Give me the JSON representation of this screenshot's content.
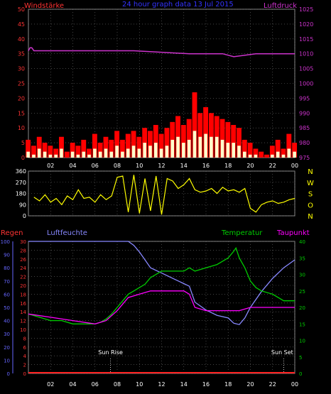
{
  "colors": {
    "background": "#000000",
    "frame": "#8a8a8a",
    "grid": "#6e6e6e",
    "wind_avg": "#ffffcc",
    "wind_gust": "#ff0000",
    "pressure": "#cc33cc",
    "direction": "#ffff00",
    "humidity": "#8888ff",
    "temperature": "#00cc00",
    "dewpoint": "#ff00ff",
    "rain": "#ff2222",
    "axis_left_red": "#ff3333",
    "axis_right_magenta": "#cc33cc",
    "axis_humidity": "#6666ff",
    "axis_right_green": "#00cc00",
    "title": "#3333ff",
    "text_white": "#ffffff"
  },
  "chart_data": [
    {
      "type": "line",
      "title": "24 hour graph data  13 Jul 2015",
      "left_label": "Windstärke",
      "right_label": "Luftdruck",
      "x_ticks": [
        "02",
        "04",
        "06",
        "08",
        "10",
        "12",
        "14",
        "16",
        "18",
        "20",
        "22",
        "00"
      ],
      "y_left_ticks": [
        "0",
        "5",
        "10",
        "15",
        "20",
        "25",
        "30",
        "35",
        "40",
        "45",
        "50"
      ],
      "y_right_ticks": [
        "975",
        "980",
        "985",
        "990",
        "995",
        "1000",
        "1005",
        "1010",
        "1015",
        "1020",
        "1025"
      ],
      "ylim_left": [
        0,
        50
      ],
      "ylim_right": [
        975,
        1025
      ],
      "xlim_hours": [
        0,
        24
      ],
      "grid": true,
      "series": [
        {
          "name": "Luftdruck",
          "axis": "right",
          "x": [
            0,
            0.15,
            0.3,
            0.5,
            5,
            6,
            6.5,
            9.5,
            14.5,
            17.5,
            18.5,
            20.5,
            24
          ],
          "values": [
            1011,
            1012,
            1012,
            1011,
            1011,
            1011,
            1011,
            1011,
            1010,
            1010,
            1009,
            1010,
            1010
          ]
        },
        {
          "name": "wind_gust",
          "axis": "left",
          "x": [
            0,
            0.5,
            1,
            1.5,
            2,
            2.5,
            3,
            3.5,
            4,
            4.5,
            5,
            5.5,
            6,
            6.5,
            7,
            7.5,
            8,
            8.5,
            9,
            9.5,
            10,
            10.5,
            11,
            11.5,
            12,
            12.5,
            13,
            13.5,
            14,
            14.5,
            15,
            15.5,
            16,
            16.5,
            17,
            17.5,
            18,
            18.5,
            19,
            19.5,
            20,
            20.5,
            21,
            21.5,
            22,
            22.5,
            23,
            23.5,
            24
          ],
          "values": [
            6,
            4,
            7,
            5,
            4,
            3,
            7,
            2,
            5,
            4,
            6,
            3,
            8,
            5,
            7,
            6,
            9,
            6,
            8,
            9,
            7,
            10,
            9,
            11,
            8,
            10,
            12,
            14,
            11,
            13,
            22,
            15,
            17,
            15,
            14,
            13,
            12,
            11,
            10,
            6,
            5,
            3,
            2,
            1,
            4,
            6,
            3,
            8,
            5
          ]
        },
        {
          "name": "wind_avg",
          "axis": "left",
          "x": [
            0,
            0.5,
            1,
            1.5,
            2,
            2.5,
            3,
            3.5,
            4,
            4.5,
            5,
            5.5,
            6,
            6.5,
            7,
            7.5,
            8,
            8.5,
            9,
            9.5,
            10,
            10.5,
            11,
            11.5,
            12,
            12.5,
            13,
            13.5,
            14,
            14.5,
            15,
            15.5,
            16,
            16.5,
            17,
            17.5,
            18,
            18.5,
            19,
            19.5,
            20,
            20.5,
            21,
            21.5,
            22,
            22.5,
            23,
            23.5,
            24
          ],
          "values": [
            2,
            1,
            3,
            2,
            1,
            1,
            3,
            0,
            2,
            1,
            2,
            1,
            3,
            2,
            3,
            2,
            4,
            2,
            3,
            4,
            3,
            5,
            4,
            5,
            3,
            4,
            6,
            7,
            5,
            6,
            9,
            7,
            8,
            7,
            7,
            6,
            5,
            5,
            4,
            2,
            1,
            1,
            0,
            0,
            1,
            2,
            1,
            3,
            2
          ]
        }
      ]
    },
    {
      "type": "line",
      "right_label": [
        "N",
        "W",
        "S",
        "O",
        "N"
      ],
      "y_left_ticks": [
        "0",
        "90",
        "180",
        "270",
        "360"
      ],
      "ylim_left": [
        0,
        360
      ],
      "xlim_hours": [
        0,
        24
      ],
      "grid": true,
      "series": [
        {
          "name": "wind_direction",
          "axis": "left",
          "x": [
            0.5,
            1,
            1.5,
            2,
            2.5,
            3,
            3.5,
            4,
            4.5,
            5,
            5.5,
            6,
            6.5,
            7,
            7.5,
            8,
            8.5,
            9,
            9.5,
            10,
            10.5,
            11,
            11.5,
            12,
            12.5,
            13,
            13.5,
            14,
            14.5,
            15,
            15.5,
            16,
            16.5,
            17,
            17.5,
            18,
            18.5,
            19,
            19.5,
            20,
            20.5,
            21,
            21.5,
            22,
            22.5,
            23,
            23.5,
            24
          ],
          "values": [
            150,
            120,
            170,
            110,
            140,
            90,
            160,
            130,
            210,
            140,
            150,
            110,
            170,
            130,
            160,
            310,
            320,
            30,
            330,
            20,
            300,
            40,
            320,
            10,
            300,
            280,
            220,
            250,
            300,
            210,
            190,
            200,
            220,
            180,
            230,
            200,
            210,
            190,
            220,
            60,
            30,
            90,
            110,
            120,
            100,
            110,
            130,
            140
          ]
        }
      ]
    },
    {
      "type": "line",
      "labels": {
        "rain": "Regen",
        "humidity": "Luftfeuchte",
        "temperature": "Temperatur",
        "dewpoint": "Taupunkt"
      },
      "annotations": [
        "Sun Rise",
        "Sun Set"
      ],
      "x_ticks": [
        "02",
        "04",
        "06",
        "08",
        "10",
        "12",
        "14",
        "16",
        "18",
        "20",
        "22",
        "00"
      ],
      "y_rain_ticks": [
        "0",
        "2",
        "4",
        "6",
        "8",
        "10",
        "12",
        "14",
        "16",
        "18",
        "20",
        "22",
        "24",
        "26",
        "28",
        "30"
      ],
      "y_humidity_ticks": [
        "0",
        "10",
        "20",
        "30",
        "40",
        "50",
        "60",
        "70",
        "80",
        "90",
        "100"
      ],
      "y_temp_ticks": [
        "0",
        "5",
        "10",
        "15",
        "20",
        "25",
        "30",
        "35",
        "40"
      ],
      "ylim_rain": [
        0,
        30
      ],
      "ylim_humidity": [
        0,
        100
      ],
      "ylim_temp": [
        0,
        40
      ],
      "xlim_hours": [
        0,
        24
      ],
      "sunrise_hour": 7.4,
      "sunset_hour": 23.0,
      "grid": true,
      "series": [
        {
          "name": "Luftfeuchte",
          "axis": "humidity",
          "x": [
            0,
            2,
            4,
            6,
            7,
            8,
            9,
            9.5,
            10,
            10.5,
            11,
            12,
            13,
            14,
            14.5,
            15,
            16,
            17,
            18,
            18.5,
            19,
            19.5,
            20,
            21,
            22,
            23,
            24
          ],
          "values": [
            100,
            100,
            100,
            100,
            100,
            100,
            100,
            97,
            92,
            86,
            80,
            76,
            72,
            68,
            66,
            54,
            48,
            44,
            42,
            38,
            37,
            42,
            50,
            62,
            72,
            80,
            86
          ]
        },
        {
          "name": "Temperatur",
          "axis": "temp",
          "x": [
            0,
            1,
            2,
            3,
            4,
            5,
            6,
            6.5,
            7,
            7.5,
            8,
            8.5,
            9,
            9.5,
            10,
            10.5,
            11,
            12,
            13,
            14,
            14.5,
            15,
            16,
            17,
            18,
            18.5,
            18.7,
            19,
            19.5,
            20,
            20.5,
            21,
            22,
            23,
            24
          ],
          "values": [
            18,
            17,
            16,
            16,
            15,
            15,
            15,
            15.5,
            16.5,
            18,
            20,
            22,
            24,
            25,
            26,
            27,
            29,
            31,
            31,
            31,
            32,
            31,
            32,
            33,
            35,
            37,
            38,
            35,
            32,
            28,
            26,
            25,
            24,
            22,
            22
          ]
        },
        {
          "name": "Taupunkt",
          "axis": "temp",
          "x": [
            0,
            2,
            4,
            6,
            7,
            8,
            9,
            10,
            11,
            12,
            13,
            14,
            14.5,
            15,
            16,
            17,
            18,
            19,
            20,
            21,
            22,
            23,
            24
          ],
          "values": [
            18,
            17,
            16,
            15,
            16,
            19,
            23,
            24,
            25,
            25,
            25,
            25,
            24,
            20,
            19,
            19,
            19,
            19,
            20,
            20,
            20,
            20,
            20
          ]
        }
      ]
    }
  ]
}
